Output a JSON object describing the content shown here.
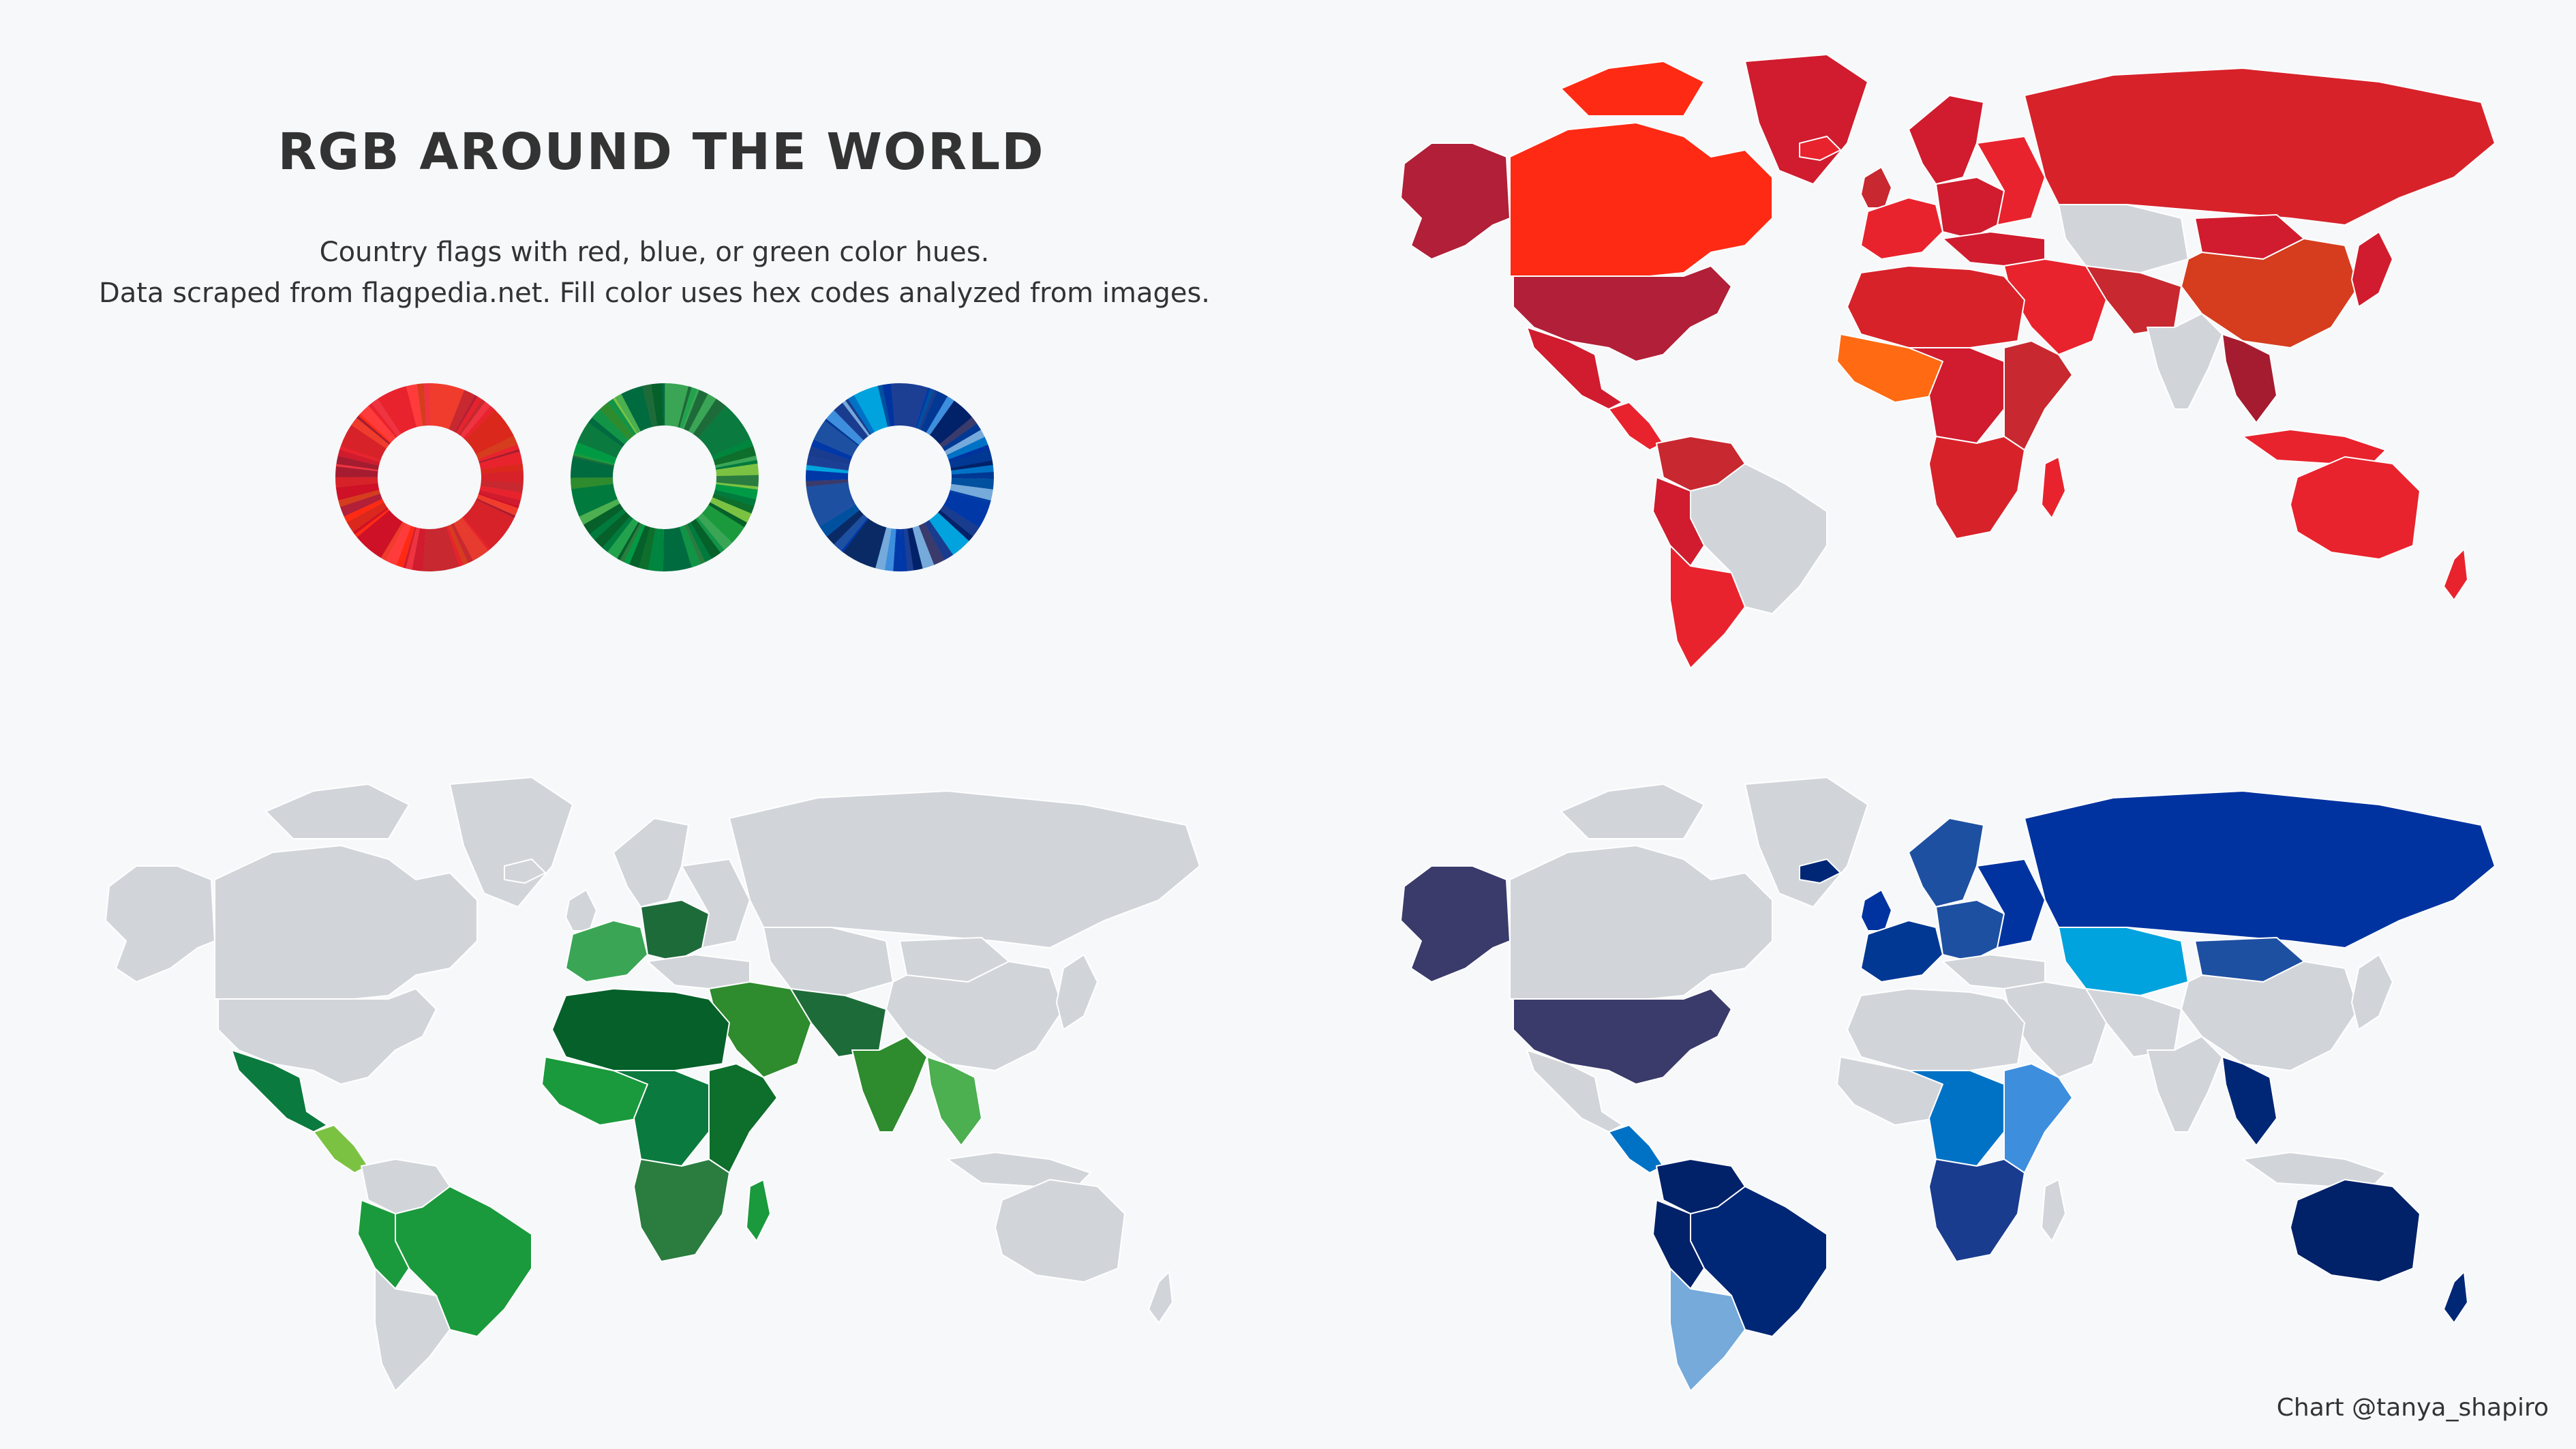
{
  "header": {
    "title": "RGB AROUND THE WORLD",
    "subtitle_line1": "Country flags with red, blue, or green color hues.",
    "subtitle_line2": "Data scraped from flagpedia.net.  Fill color uses hex codes analyzed from images."
  },
  "colors": {
    "background": "#f6f8fa",
    "no_data": "#d1d5da",
    "red_palette": [
      "#d01c2e",
      "#e8232d",
      "#ff2a14",
      "#b11f38",
      "#d7222a",
      "#c8282f",
      "#e63b2e",
      "#a51c30",
      "#f03c2c",
      "#d53d1e",
      "#ff6a13",
      "#c0152f"
    ],
    "green_palette": [
      "#1a9a3c",
      "#0b7a3e",
      "#2e8b2e",
      "#1e6b3a",
      "#4caf50",
      "#0e6e2b",
      "#3aa655",
      "#2a7d3f",
      "#7cc242",
      "#05602a",
      "#23a24d",
      "#129447"
    ],
    "blue_palette": [
      "#0033a0",
      "#002776",
      "#003893",
      "#1e50a2",
      "#3a3b6b",
      "#0072c6",
      "#75aadb",
      "#00a3dd",
      "#012169",
      "#1a3c8f",
      "#3e8ede",
      "#0a2a66"
    ]
  },
  "donuts": [
    {
      "name": "red",
      "colors": [
        "#ff2a14",
        "#e8232d",
        "#d01c2e",
        "#c8282f",
        "#b11f38",
        "#e63b2e",
        "#d7222a",
        "#ff3b3b",
        "#c0152f",
        "#f03c2c",
        "#a51c30",
        "#d53d1e",
        "#e8232d",
        "#ce1126",
        "#da291c",
        "#ef3340"
      ]
    },
    {
      "name": "green",
      "colors": [
        "#7cc242",
        "#1a9a3c",
        "#0b7a3e",
        "#2e8b2e",
        "#1e6b3a",
        "#0e6e2b",
        "#3aa655",
        "#2a7d3f",
        "#05602a",
        "#23a24d",
        "#129447",
        "#007a3d",
        "#009a44",
        "#4caf50",
        "#006b3f",
        "#00853f"
      ]
    },
    {
      "name": "blue",
      "colors": [
        "#75aadb",
        "#0033a0",
        "#002776",
        "#003893",
        "#1e50a2",
        "#3a3b6b",
        "#0072c6",
        "#00a3dd",
        "#012169",
        "#1a3c8f",
        "#3e8ede",
        "#0a2a66",
        "#0038a8",
        "#003da5",
        "#0050a0",
        "#1c3f94"
      ]
    }
  ],
  "maps": [
    {
      "name": "red-map",
      "hue": "red"
    },
    {
      "name": "green-map",
      "hue": "green"
    },
    {
      "name": "blue-map",
      "hue": "blue"
    }
  ],
  "credit": "Chart @tanya_shapiro"
}
